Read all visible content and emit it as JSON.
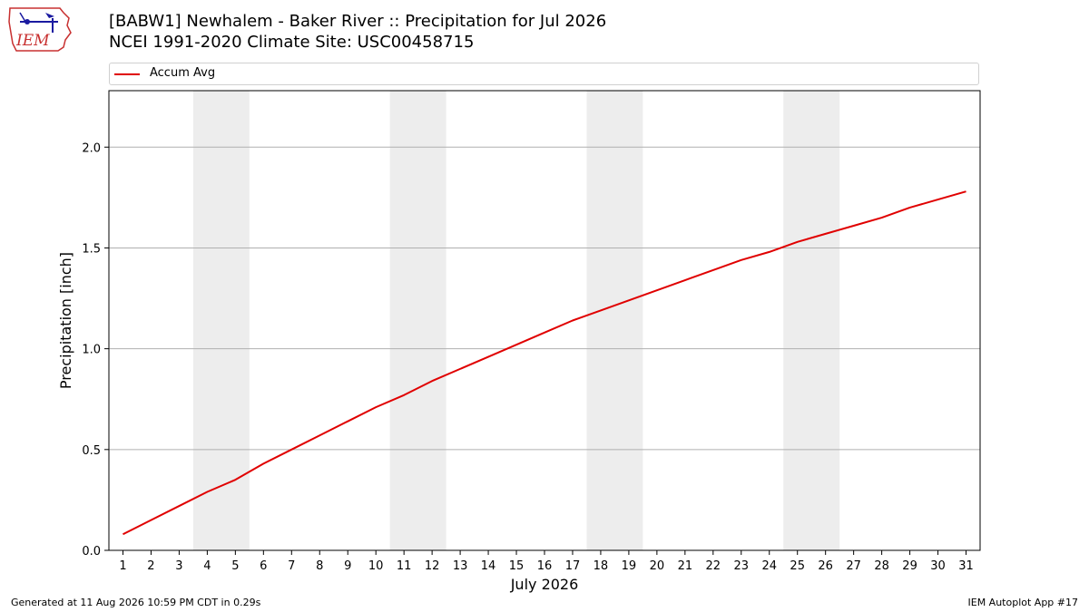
{
  "logo": {
    "text": "IEM",
    "icon": "iem-iowa-logo-icon"
  },
  "title_line1": "[BABW1] Newhalem - Baker River :: Precipitation for Jul 2026",
  "title_line2": "NCEI 1991-2020 Climate Site: USC00458715",
  "footer": {
    "generated": "Generated at 11 Aug 2026 10:59 PM CDT in 0.29s",
    "app": "IEM Autoplot App #17"
  },
  "colors": {
    "line": "#e00000",
    "weekend": "#ededed",
    "grid": "#b0b0b0"
  },
  "chart_data": {
    "type": "line",
    "title": "[BABW1] Newhalem - Baker River :: Precipitation for Jul 2026",
    "subtitle": "NCEI 1991-2020 Climate Site: USC00458715",
    "xlabel": "July 2026",
    "ylabel": "Precipitation [inch]",
    "x": [
      1,
      2,
      3,
      4,
      5,
      6,
      7,
      8,
      9,
      10,
      11,
      12,
      13,
      14,
      15,
      16,
      17,
      18,
      19,
      20,
      21,
      22,
      23,
      24,
      25,
      26,
      27,
      28,
      29,
      30,
      31
    ],
    "xlim": [
      0.5,
      31.5
    ],
    "ylim": [
      0,
      2.28
    ],
    "yticks": [
      "0.0",
      "0.5",
      "1.0",
      "1.5",
      "2.0"
    ],
    "ytick_values": [
      0,
      0.5,
      1.0,
      1.5,
      2.0
    ],
    "xticks": [
      "1",
      "2",
      "3",
      "4",
      "5",
      "6",
      "7",
      "8",
      "9",
      "10",
      "11",
      "12",
      "13",
      "14",
      "15",
      "16",
      "17",
      "18",
      "19",
      "20",
      "21",
      "22",
      "23",
      "24",
      "25",
      "26",
      "27",
      "28",
      "29",
      "30",
      "31"
    ],
    "grid": "horizontal",
    "legend_position": "top",
    "weekend_bands": [
      [
        3.5,
        5.5
      ],
      [
        10.5,
        12.5
      ],
      [
        17.5,
        19.5
      ],
      [
        24.5,
        26.5
      ]
    ],
    "series": [
      {
        "name": "Accum Avg",
        "color": "#e00000",
        "values": [
          0.08,
          0.15,
          0.22,
          0.29,
          0.35,
          0.43,
          0.5,
          0.57,
          0.64,
          0.71,
          0.77,
          0.84,
          0.9,
          0.96,
          1.02,
          1.08,
          1.14,
          1.19,
          1.24,
          1.29,
          1.34,
          1.39,
          1.44,
          1.48,
          1.53,
          1.57,
          1.61,
          1.65,
          1.7,
          1.74,
          1.78
        ]
      }
    ]
  }
}
